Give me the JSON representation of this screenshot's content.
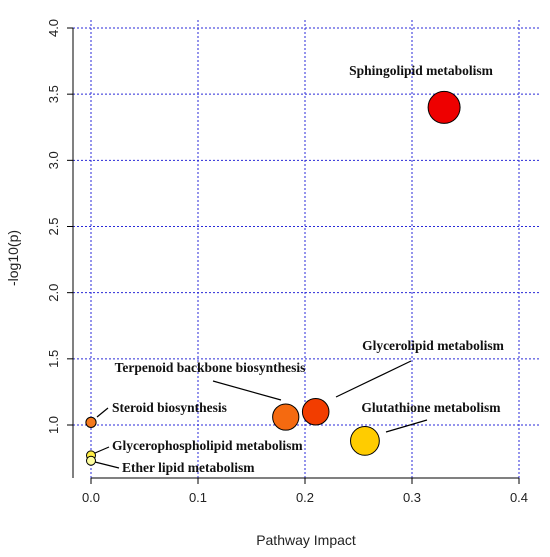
{
  "chart_data": {
    "type": "scatter",
    "xlabel": "Pathway Impact",
    "ylabel": "-log10(p)",
    "xlim": [
      0,
      0.4
    ],
    "ylim": [
      0.7,
      4.0
    ],
    "x_ticks": [
      "0.0",
      "0.1",
      "0.2",
      "0.3",
      "0.4"
    ],
    "y_ticks": [
      "1.0",
      "1.5",
      "2.0",
      "2.5",
      "3.0",
      "3.5",
      "4.0"
    ],
    "grid": true,
    "points": [
      {
        "label": "Sphingolipid metabolism",
        "x": 0.33,
        "y": 3.4,
        "size": 1.0,
        "color": "#ee0000"
      },
      {
        "label": "Glycerolipid metabolism",
        "x": 0.21,
        "y": 1.1,
        "size": 0.83,
        "color": "#f23d00"
      },
      {
        "label": "Terpenoid backbone biosynthesis",
        "x": 0.182,
        "y": 1.06,
        "size": 0.82,
        "color": "#f56a10"
      },
      {
        "label": "Glutathione metabolism",
        "x": 0.256,
        "y": 0.88,
        "size": 0.9,
        "color": "#ffcc00"
      },
      {
        "label": "Steroid biosynthesis",
        "x": 0.0,
        "y": 1.02,
        "size": 0.32,
        "color": "#f47a20"
      },
      {
        "label": "Glycerophospholipid metabolism",
        "x": 0.0,
        "y": 0.77,
        "size": 0.28,
        "color": "#ffee44"
      },
      {
        "label": "Ether lipid metabolism",
        "x": 0.0,
        "y": 0.73,
        "size": 0.28,
        "color": "#ffffa0"
      }
    ]
  }
}
